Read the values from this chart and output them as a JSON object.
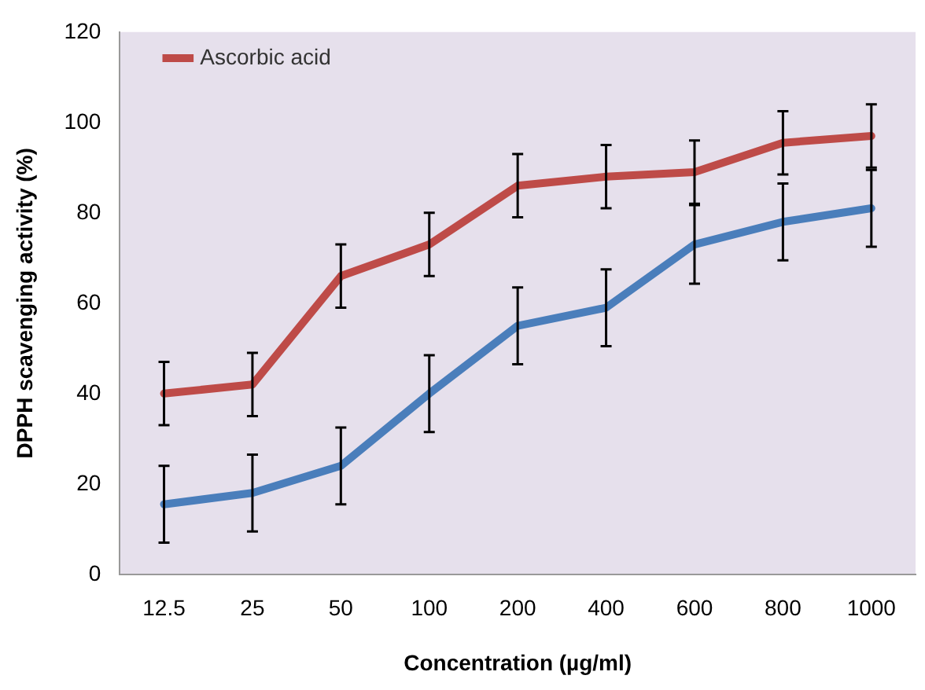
{
  "chart_data": {
    "type": "line",
    "xlabel": "Concentration (µg/ml)",
    "ylabel": "DPPH scavenging activity (%)",
    "categories": [
      "12.5",
      "25",
      "50",
      "100",
      "200",
      "400",
      "600",
      "800",
      "1000"
    ],
    "series": [
      {
        "color": "#4a7ebb",
        "values": [
          15.5,
          18,
          24,
          40,
          55,
          59,
          73,
          78,
          81
        ],
        "errors": [
          8.5,
          8.5,
          8.5,
          8.5,
          8.5,
          8.5,
          8.7,
          8.5,
          8.5
        ]
      },
      {
        "name": "Ascorbic acid",
        "color": "#be4b48",
        "values": [
          40,
          42,
          66,
          73,
          86,
          88,
          89,
          95.5,
          97
        ],
        "errors": [
          7,
          7,
          7,
          7,
          7,
          7,
          7,
          7,
          7
        ]
      }
    ],
    "ylim": [
      0,
      120
    ],
    "yticks": [
      0,
      20,
      40,
      60,
      80,
      100,
      120
    ],
    "grid": false,
    "legend": "top left",
    "marker": "none",
    "line_style": "solid"
  }
}
